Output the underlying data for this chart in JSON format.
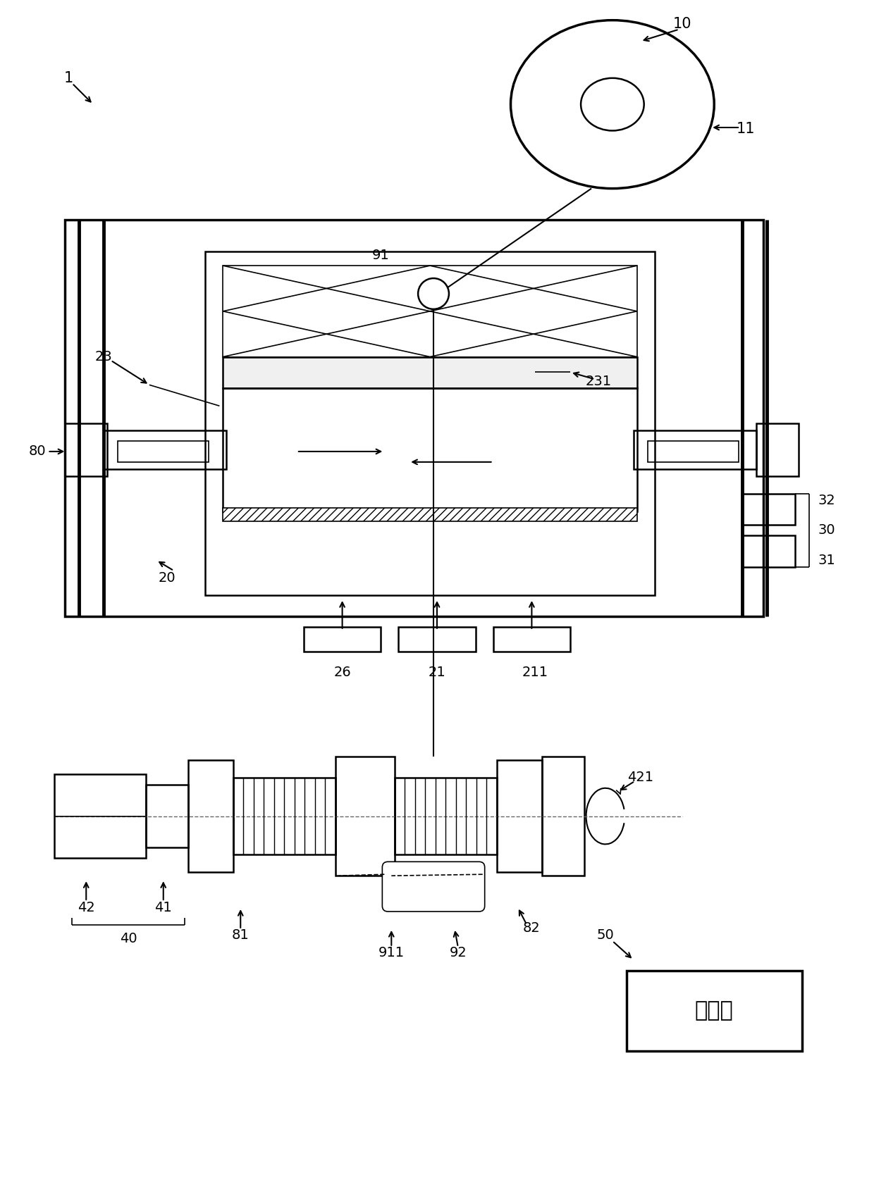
{
  "bg_color": "#ffffff",
  "figsize": [
    12.4,
    16.95
  ],
  "dpi": 100
}
